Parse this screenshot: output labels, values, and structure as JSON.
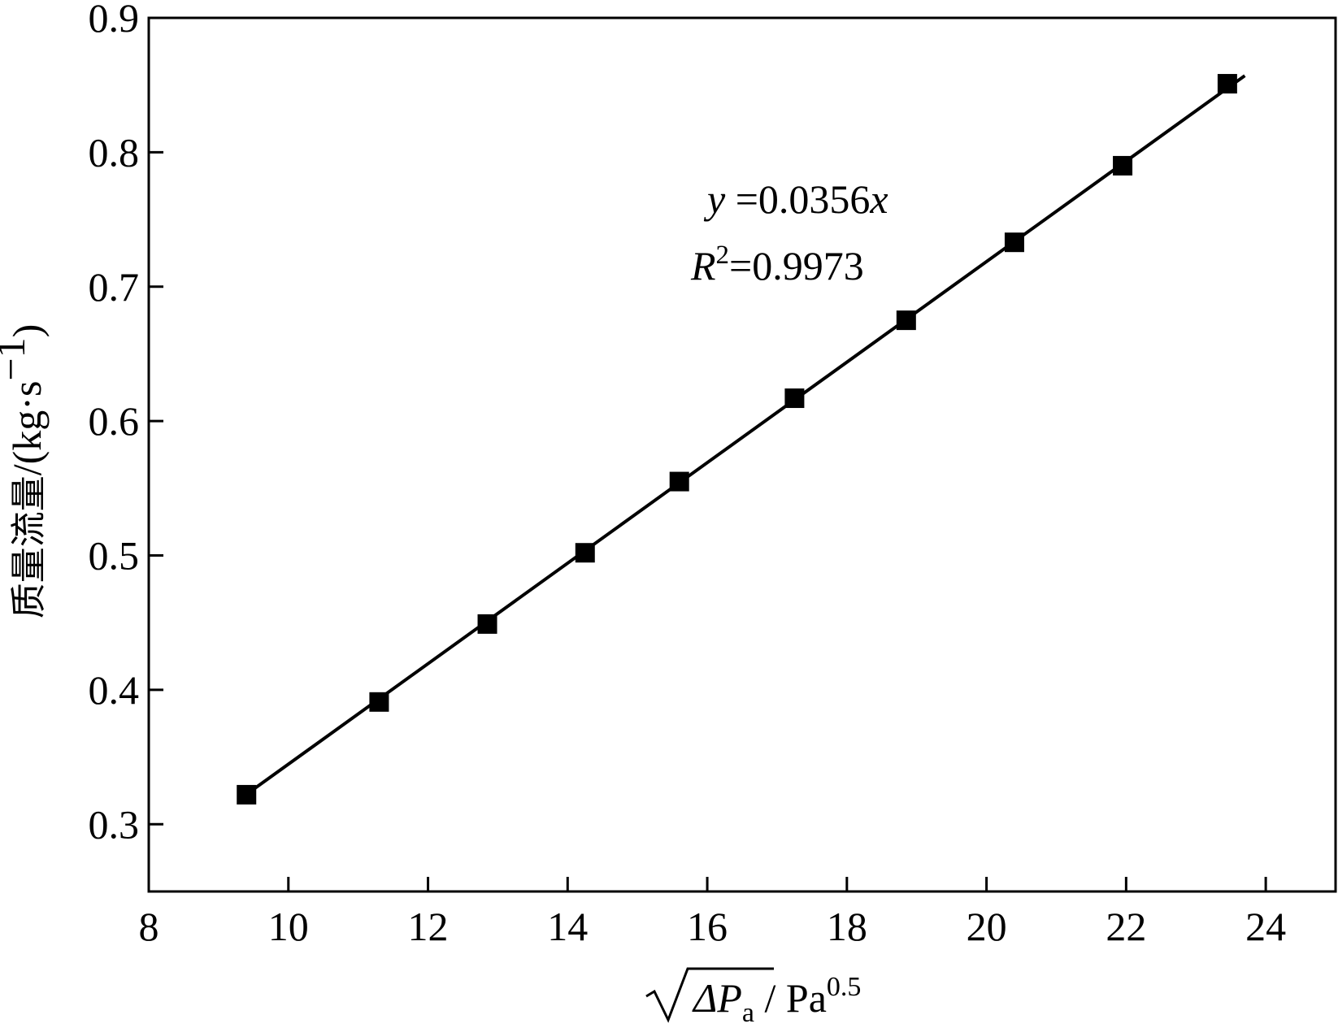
{
  "chart_data": {
    "type": "scatter",
    "xlabel": {
      "radicand": "ΔP",
      "subscript": "a",
      "separator": " / ",
      "unit": "Pa",
      "unit_exponent": "0.5"
    },
    "ylabel": {
      "cjk": "质量流量",
      "unit": "/(kg·s",
      "unit_exponent": "−1",
      "close": ")"
    },
    "xlim": [
      8,
      25
    ],
    "ylim": [
      0.25,
      0.9
    ],
    "xticks": [
      "8",
      "10",
      "12",
      "14",
      "16",
      "18",
      "20",
      "22",
      "24"
    ],
    "yticks": [
      "0.3",
      "0.4",
      "0.5",
      "0.6",
      "0.7",
      "0.8",
      "0.9"
    ],
    "series": [
      {
        "marker": "square",
        "color": "#000000",
        "x": [
          9.4,
          11.3,
          12.85,
          14.25,
          15.6,
          17.25,
          18.85,
          20.4,
          21.95,
          23.45
        ],
        "y": [
          0.322,
          0.391,
          0.449,
          0.502,
          0.555,
          0.617,
          0.675,
          0.733,
          0.79,
          0.851
        ]
      }
    ],
    "fit_line": {
      "x": [
        9.5,
        23.7
      ],
      "y": [
        0.326,
        0.857
      ],
      "color": "#000000"
    },
    "annotation": {
      "eq_var": "y",
      "eq_rest": " =0.0356",
      "eq_x": "x",
      "r2_var": "R",
      "r2_exp": "2",
      "r2_rest": "=0.9973"
    },
    "grid": false
  }
}
